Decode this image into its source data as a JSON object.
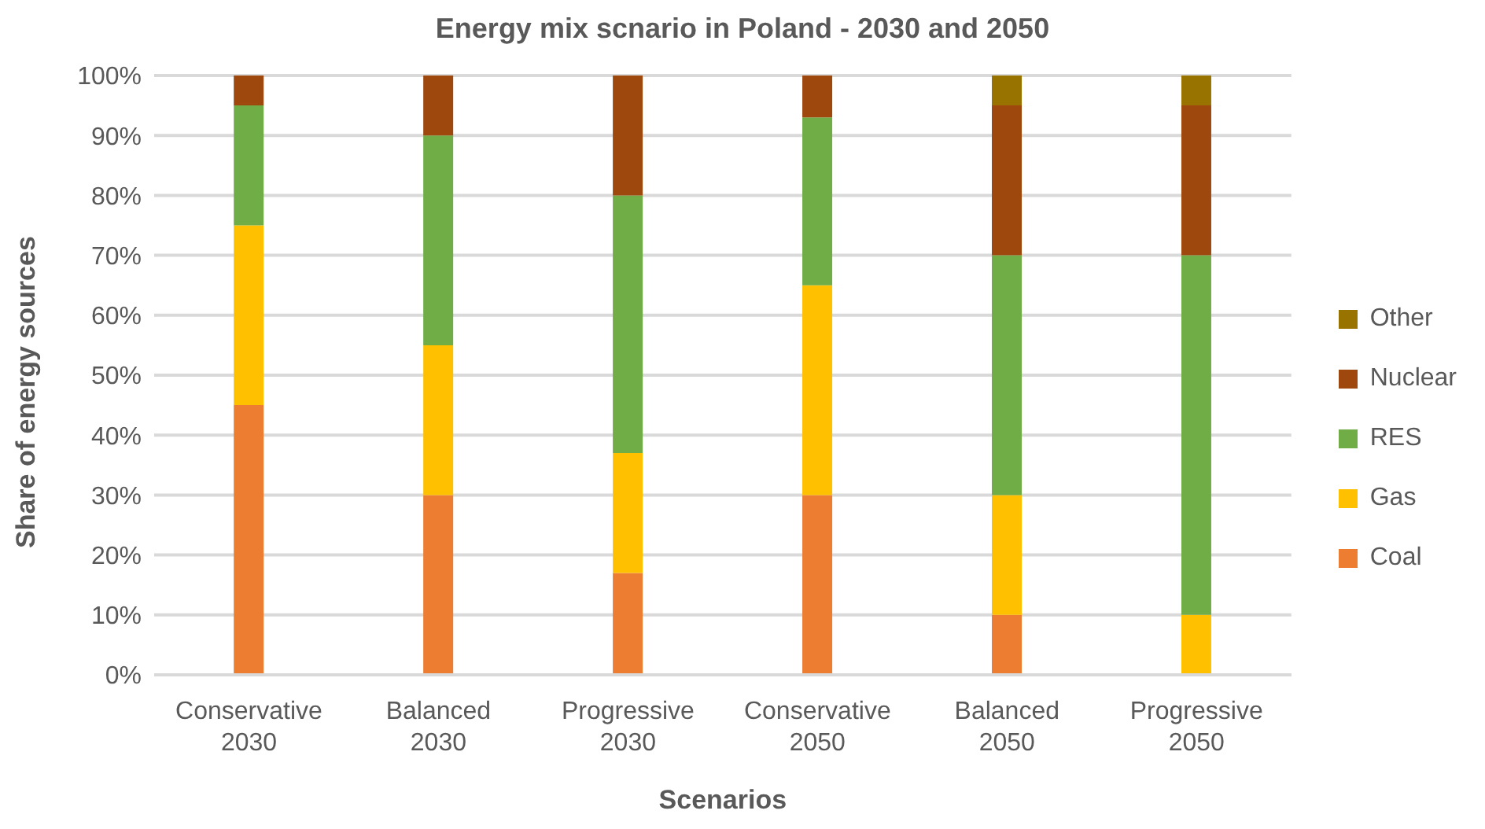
{
  "chart_data": {
    "type": "bar",
    "stacked": true,
    "title": "Energy mix scnario in Poland - 2030 and 2050",
    "xlabel": "Scenarios",
    "ylabel": "Share of energy sources",
    "categories": [
      "Conservative 2030",
      "Balanced 2030",
      "Progressive 2030",
      "Conservative 2050",
      "Balanced 2050",
      "Progressive 2050"
    ],
    "series": [
      {
        "name": "Coal",
        "color": "#ed7d31",
        "values": [
          45,
          30,
          17,
          30,
          10,
          0
        ]
      },
      {
        "name": "Gas",
        "color": "#ffc000",
        "values": [
          30,
          25,
          20,
          35,
          20,
          10
        ]
      },
      {
        "name": "RES",
        "color": "#70ad47",
        "values": [
          20,
          35,
          43,
          28,
          40,
          60
        ]
      },
      {
        "name": "Nuclear",
        "color": "#9e480e",
        "values": [
          5,
          10,
          20,
          7,
          25,
          25
        ]
      },
      {
        "name": "Other",
        "color": "#997300",
        "values": [
          0,
          0,
          0,
          0,
          5,
          5
        ]
      }
    ],
    "ylim": [
      0,
      100
    ],
    "yticks": [
      {
        "value": 0,
        "label": "0%"
      },
      {
        "value": 10,
        "label": "10%"
      },
      {
        "value": 20,
        "label": "20%"
      },
      {
        "value": 30,
        "label": "30%"
      },
      {
        "value": 40,
        "label": "40%"
      },
      {
        "value": 50,
        "label": "50%"
      },
      {
        "value": 60,
        "label": "60%"
      },
      {
        "value": 70,
        "label": "70%"
      },
      {
        "value": 80,
        "label": "80%"
      },
      {
        "value": 90,
        "label": "90%"
      },
      {
        "value": 100,
        "label": "100%"
      }
    ],
    "grid": "y",
    "legend": "right"
  }
}
